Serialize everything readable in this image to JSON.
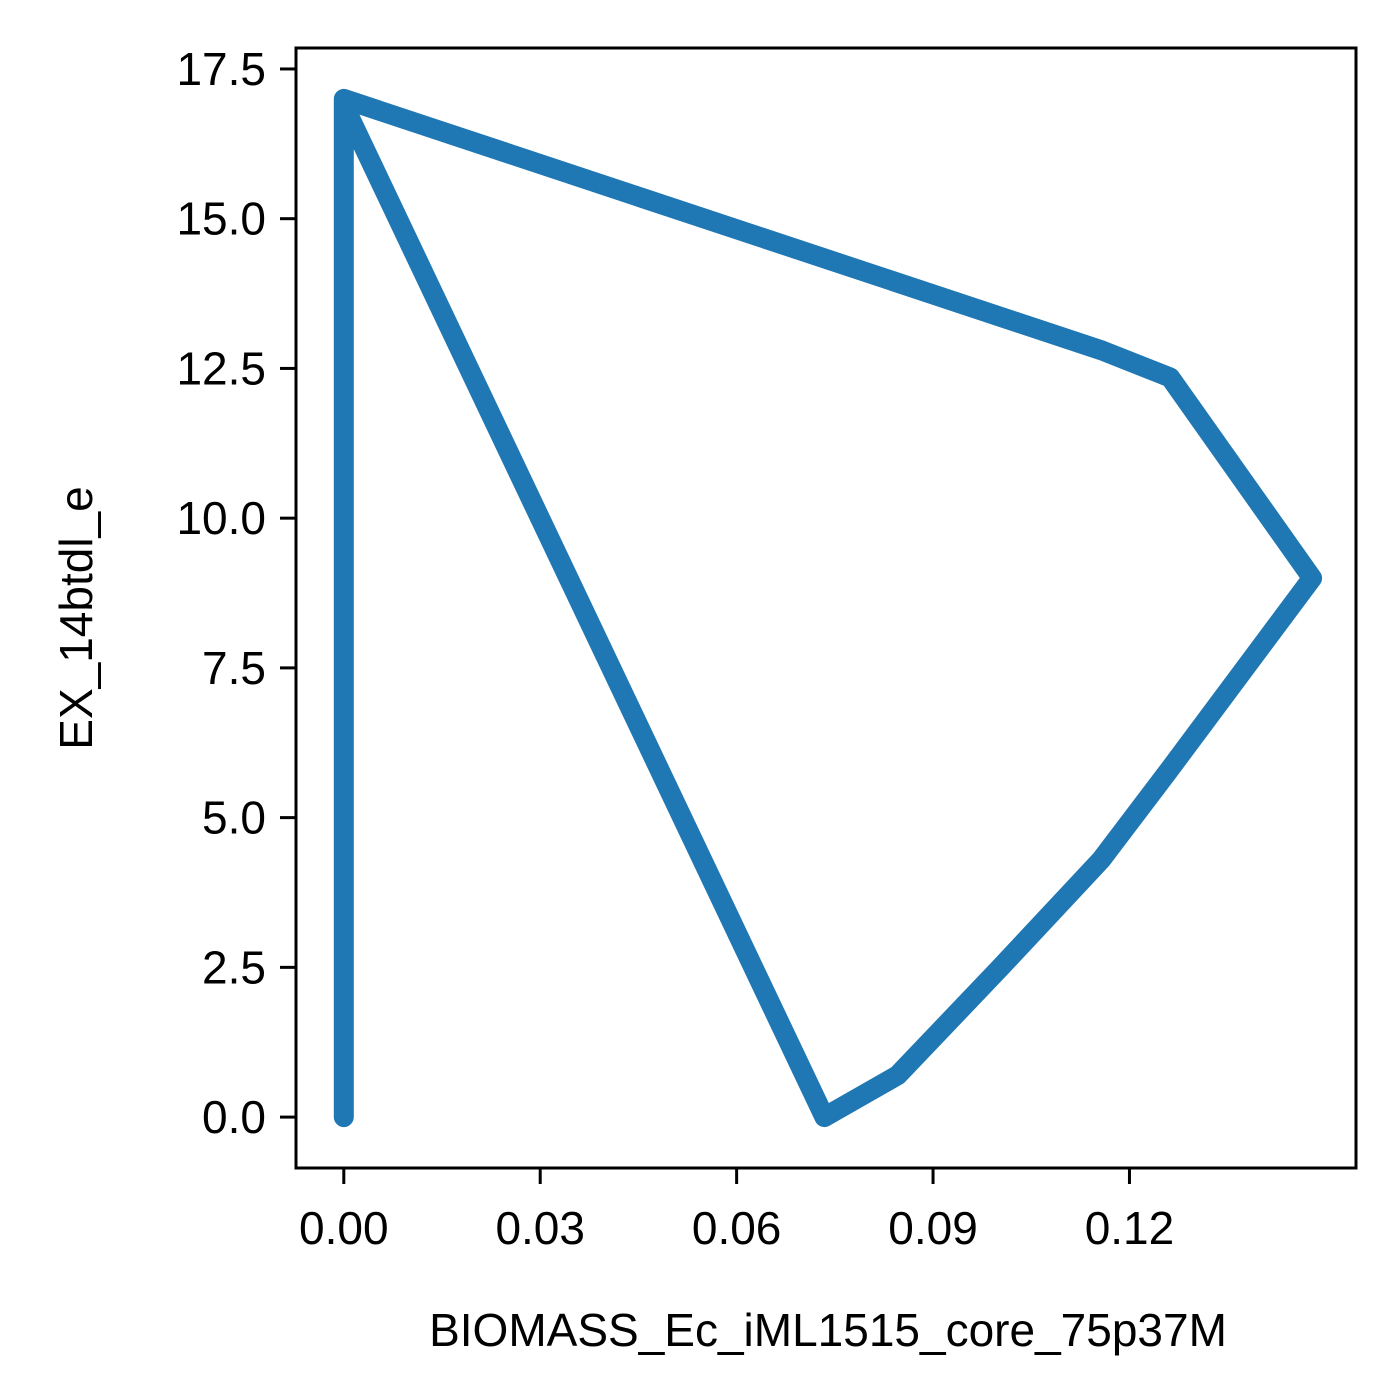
{
  "chart_data": {
    "type": "line",
    "title": "",
    "xlabel": "BIOMASS_Ec_iML1515_core_75p37M",
    "ylabel": "EX_14btdl_e",
    "xlim": [
      -0.0073,
      0.1546
    ],
    "ylim": [
      -0.85,
      17.85
    ],
    "xticks": [
      0.0,
      0.03,
      0.06,
      0.09,
      0.12
    ],
    "xtick_labels": [
      "0.00",
      "0.03",
      "0.06",
      "0.09",
      "0.12"
    ],
    "yticks": [
      0.0,
      2.5,
      5.0,
      7.5,
      10.0,
      12.5,
      15.0,
      17.5
    ],
    "ytick_labels": [
      "0.0",
      "2.5",
      "5.0",
      "7.5",
      "10.0",
      "12.5",
      "15.0",
      "17.5"
    ],
    "grid": false,
    "color": "#1f77b4",
    "series": [
      {
        "x": [
          0.0,
          0.0,
          0.0734,
          0.0846,
          0.1003,
          0.1157,
          0.1261,
          0.1479,
          0.1262,
          0.1158,
          0.0,
          0.0
        ],
        "y": [
          0.0,
          16.9,
          0.0,
          0.7,
          2.5,
          4.3,
          5.8,
          9.0,
          12.35,
          12.8,
          17.0,
          0.0
        ]
      }
    ]
  }
}
